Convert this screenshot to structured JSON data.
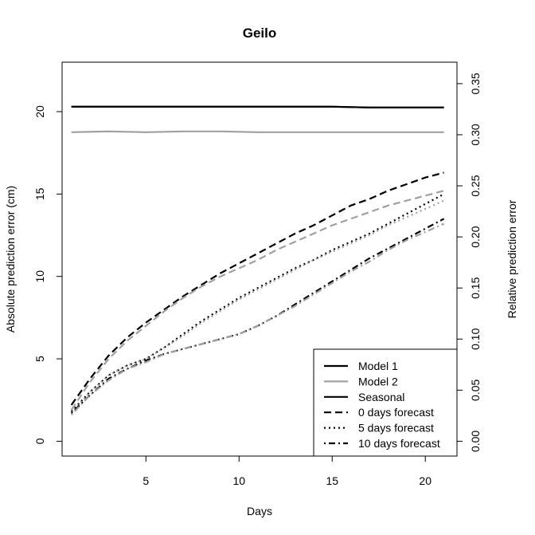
{
  "chart_data": {
    "type": "line",
    "title": "Geilo",
    "xlabel": "Days",
    "ylabel": "Absolute prediction error (cm)",
    "ylabel_right": "Relative prediction error",
    "xlim": [
      0.5,
      21.7
    ],
    "ylim": [
      -0.9,
      23
    ],
    "ylim_right": [
      -0.0145,
      0.371
    ],
    "x_ticks": [
      5,
      10,
      15,
      20
    ],
    "y_ticks": [
      0,
      5,
      10,
      15,
      20
    ],
    "y_ticks_right": [
      "0.00",
      "0.05",
      "0.10",
      "0.15",
      "0.20",
      "0.25",
      "0.30",
      "0.35"
    ],
    "grid": false,
    "legend_position": "bottom-right",
    "colors": {
      "black": "#000000",
      "gray": "#a0a0a0"
    },
    "series": [
      {
        "name": "Model 1",
        "color": "#000000",
        "dash": "solid",
        "x": [
          1,
          3,
          5,
          7,
          9,
          11,
          13,
          15,
          17,
          19,
          21
        ],
        "y": [
          20.3,
          20.3,
          20.3,
          20.3,
          20.3,
          20.3,
          20.3,
          20.3,
          20.25,
          20.25,
          20.25
        ]
      },
      {
        "name": "Model 2",
        "color": "#a0a0a0",
        "dash": "solid",
        "x": [
          1,
          3,
          5,
          7,
          9,
          11,
          13,
          15,
          17,
          19,
          21
        ],
        "y": [
          18.75,
          18.8,
          18.75,
          18.8,
          18.8,
          18.75,
          18.75,
          18.75,
          18.75,
          18.75,
          18.75
        ]
      },
      {
        "name": "Seasonal",
        "color": "#000000",
        "dash": "solid",
        "x": [
          1,
          3,
          5,
          7,
          9,
          11,
          13,
          15,
          17,
          19,
          21
        ],
        "y": [
          20.3,
          20.3,
          20.3,
          20.3,
          20.3,
          20.3,
          20.3,
          20.3,
          20.25,
          20.25,
          20.25
        ]
      },
      {
        "name": "0 days forecast",
        "color": "#000000",
        "dash": "dashed",
        "x": [
          1,
          2,
          3,
          4,
          5,
          6,
          7,
          8,
          9,
          10,
          11,
          12,
          13,
          14,
          15,
          16,
          17,
          18,
          19,
          20,
          21
        ],
        "y": [
          2.2,
          3.8,
          5.2,
          6.3,
          7.2,
          8.0,
          8.8,
          9.5,
          10.2,
          10.8,
          11.4,
          12.0,
          12.6,
          13.1,
          13.7,
          14.3,
          14.7,
          15.2,
          15.6,
          16.0,
          16.3
        ]
      },
      {
        "name": "0 days forecast (gray)",
        "color": "#a0a0a0",
        "dash": "dashed",
        "x": [
          1,
          2,
          3,
          4,
          5,
          6,
          7,
          8,
          9,
          10,
          11,
          12,
          13,
          14,
          15,
          16,
          17,
          18,
          19,
          20,
          21
        ],
        "y": [
          1.9,
          3.6,
          5.0,
          6.1,
          7.0,
          7.9,
          8.7,
          9.4,
          10.0,
          10.5,
          11.0,
          11.6,
          12.1,
          12.6,
          13.1,
          13.5,
          13.9,
          14.3,
          14.6,
          14.9,
          15.2
        ]
      },
      {
        "name": "5 days forecast",
        "color": "#000000",
        "dash": "dotted",
        "x": [
          1,
          2,
          3,
          4,
          5,
          6,
          7,
          8,
          9,
          10,
          11,
          12,
          13,
          14,
          15,
          16,
          17,
          18,
          19,
          20,
          21
        ],
        "y": [
          1.8,
          3.0,
          4.0,
          4.6,
          5.0,
          5.7,
          6.5,
          7.3,
          8.0,
          8.7,
          9.3,
          9.9,
          10.5,
          11.0,
          11.6,
          12.1,
          12.6,
          13.2,
          13.8,
          14.4,
          15.0
        ]
      },
      {
        "name": "5 days forecast (gray)",
        "color": "#a0a0a0",
        "dash": "dotted",
        "x": [
          1,
          2,
          3,
          4,
          5,
          6,
          7,
          8,
          9,
          10,
          11,
          12,
          13,
          14,
          15,
          16,
          17,
          18,
          19,
          20,
          21
        ],
        "y": [
          1.7,
          3.0,
          4.0,
          4.6,
          5.0,
          5.7,
          6.4,
          7.2,
          7.9,
          8.6,
          9.2,
          9.8,
          10.4,
          11.0,
          11.5,
          12.0,
          12.5,
          13.1,
          13.6,
          14.1,
          14.6
        ]
      },
      {
        "name": "10 days forecast",
        "color": "#000000",
        "dash": "dotdash",
        "x": [
          1,
          2,
          3,
          4,
          5,
          6,
          7,
          8,
          9,
          10,
          11,
          12,
          13,
          14,
          15,
          16,
          17,
          18,
          19,
          20,
          21
        ],
        "y": [
          1.7,
          2.8,
          3.8,
          4.4,
          4.9,
          5.3,
          5.6,
          5.9,
          6.2,
          6.5,
          7.0,
          7.6,
          8.3,
          9.0,
          9.7,
          10.4,
          11.1,
          11.7,
          12.3,
          12.9,
          13.5
        ]
      },
      {
        "name": "10 days forecast (gray)",
        "color": "#a0a0a0",
        "dash": "dotdash",
        "x": [
          1,
          2,
          3,
          4,
          5,
          6,
          7,
          8,
          9,
          10,
          11,
          12,
          13,
          14,
          15,
          16,
          17,
          18,
          19,
          20,
          21
        ],
        "y": [
          1.6,
          2.8,
          3.7,
          4.4,
          4.8,
          5.3,
          5.6,
          5.9,
          6.2,
          6.5,
          7.0,
          7.6,
          8.2,
          8.9,
          9.6,
          10.3,
          10.9,
          11.6,
          12.2,
          12.7,
          13.2
        ]
      }
    ],
    "legend": [
      {
        "label": "Model 1",
        "color": "#000000",
        "dash": "solid"
      },
      {
        "label": "Model 2",
        "color": "#a0a0a0",
        "dash": "solid"
      },
      {
        "label": "Seasonal",
        "color": "#000000",
        "dash": "solid"
      },
      {
        "label": "0 days forecast",
        "color": "#000000",
        "dash": "dashed"
      },
      {
        "label": "5 days forecast",
        "color": "#000000",
        "dash": "dotted"
      },
      {
        "label": "10 days forecast",
        "color": "#000000",
        "dash": "dotdash"
      }
    ]
  }
}
